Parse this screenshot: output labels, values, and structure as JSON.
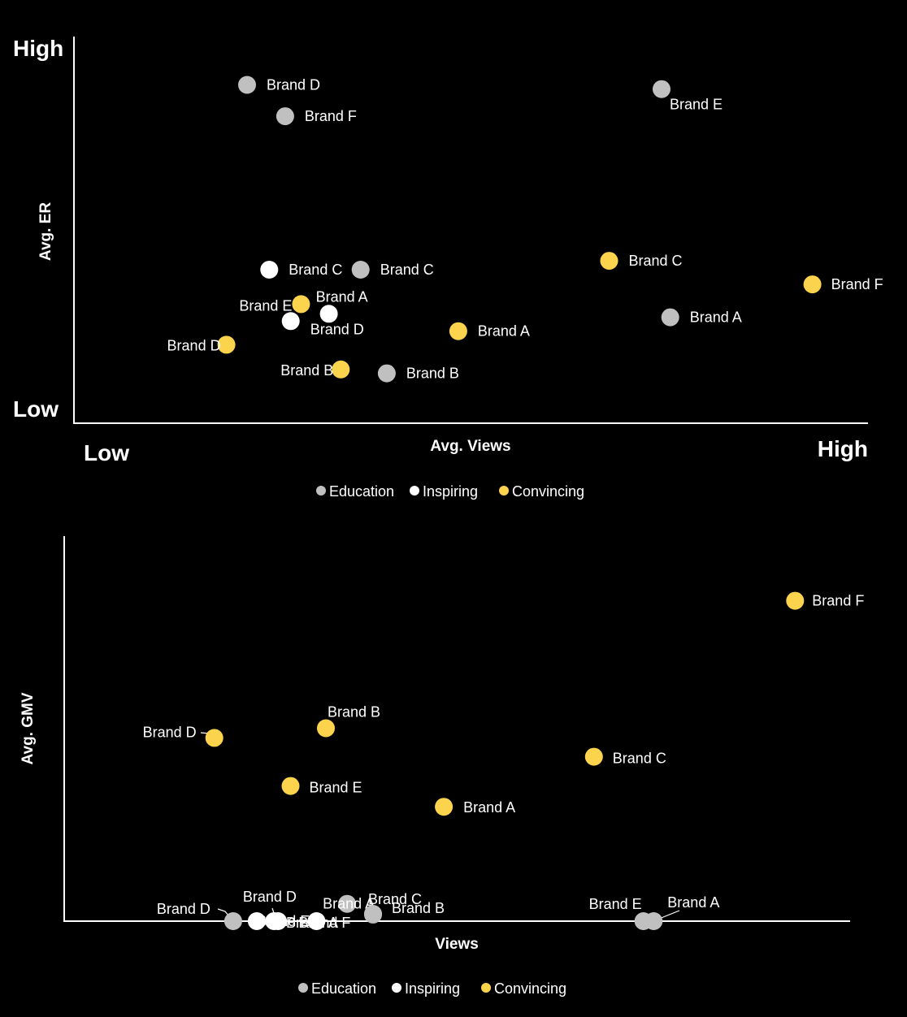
{
  "colors": {
    "Education": "#c0c0c0",
    "Inspiring": "#ffffff",
    "Convincing": "#fcd34d",
    "background": "#000000",
    "axis": "#ffffff"
  },
  "chart_data": [
    {
      "type": "scatter",
      "title": "",
      "xlabel": "Avg. Views",
      "ylabel": "Avg. ER",
      "x_low_label": "Low",
      "x_high_label": "High",
      "y_low_label": "Low",
      "y_high_label": "High",
      "xlim": [
        0,
        100
      ],
      "ylim": [
        0,
        100
      ],
      "grid": false,
      "legend_position": "bottom",
      "legend": [
        "Education",
        "Inspiring",
        "Convincing"
      ],
      "series": [
        {
          "name": "Education",
          "points": [
            {
              "label": "Brand D",
              "x": 21.8,
              "y": 87.5
            },
            {
              "label": "Brand F",
              "x": 26.6,
              "y": 79.4
            },
            {
              "label": "Brand E",
              "x": 74.0,
              "y": 86.4
            },
            {
              "label": "Brand C",
              "x": 36.1,
              "y": 39.7
            },
            {
              "label": "Brand A",
              "x": 75.1,
              "y": 27.4
            },
            {
              "label": "Brand B",
              "x": 39.4,
              "y": 12.9
            }
          ]
        },
        {
          "name": "Inspiring",
          "points": [
            {
              "label": "Brand C",
              "x": 24.6,
              "y": 39.7
            },
            {
              "label": "Brand A",
              "x": 32.1,
              "y": 28.3
            },
            {
              "label": "Brand D",
              "x": 27.3,
              "y": 26.4
            }
          ]
        },
        {
          "name": "Convincing",
          "points": [
            {
              "label": "Brand C",
              "x": 67.4,
              "y": 42.0
            },
            {
              "label": "Brand F",
              "x": 93.0,
              "y": 35.9
            },
            {
              "label": "Brand E",
              "x": 28.6,
              "y": 30.8
            },
            {
              "label": "Brand A",
              "x": 48.4,
              "y": 23.8
            },
            {
              "label": "Brand D",
              "x": 19.2,
              "y": 20.3
            },
            {
              "label": "Brand B",
              "x": 33.6,
              "y": 13.9
            }
          ]
        }
      ]
    },
    {
      "type": "scatter",
      "title": "",
      "xlabel": "Views",
      "ylabel": "Avg. GMV",
      "xlim": [
        0,
        100
      ],
      "ylim": [
        0,
        100
      ],
      "grid": false,
      "legend_position": "bottom",
      "legend": [
        "Education",
        "Inspiring",
        "Convincing"
      ],
      "series": [
        {
          "name": "Education",
          "points": [
            {
              "label": "Brand D",
              "x": 21.5,
              "y": 0.0
            },
            {
              "label": "Brand A",
              "x": 36.0,
              "y": 4.5
            },
            {
              "label": "Brand C",
              "x": 39.3,
              "y": 1.9
            },
            {
              "label": "Brand B",
              "x": 39.3,
              "y": 1.7
            },
            {
              "label": "Brand E",
              "x": 73.7,
              "y": 0.0
            },
            {
              "label": "Brand A",
              "x": 75.0,
              "y": 0.0
            }
          ]
        },
        {
          "name": "Inspiring",
          "points": [
            {
              "label": "Brand D",
              "x": 24.5,
              "y": 0.0
            },
            {
              "label": "Brand E",
              "x": 26.7,
              "y": 0.0
            },
            {
              "label": "Brand A",
              "x": 27.2,
              "y": 0.0
            },
            {
              "label": "Brand F",
              "x": 32.1,
              "y": 0.0
            }
          ]
        },
        {
          "name": "Convincing",
          "points": [
            {
              "label": "Brand F",
              "x": 93.0,
              "y": 83.2
            },
            {
              "label": "Brand B",
              "x": 33.3,
              "y": 50.1
            },
            {
              "label": "Brand D",
              "x": 19.1,
              "y": 47.6
            },
            {
              "label": "Brand C",
              "x": 67.4,
              "y": 42.7
            },
            {
              "label": "Brand E",
              "x": 28.8,
              "y": 35.1
            },
            {
              "label": "Brand A",
              "x": 48.3,
              "y": 29.7
            }
          ]
        }
      ]
    }
  ]
}
